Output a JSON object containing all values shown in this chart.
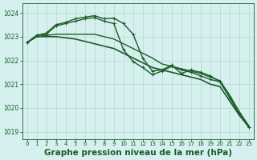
{
  "background_color": "#d6f0f0",
  "grid_color": "#b8ddd0",
  "line_color": "#1a5c28",
  "title": "Graphe pression niveau de la mer (hPa)",
  "ylim": [
    1018.7,
    1024.4
  ],
  "xlim": [
    -0.5,
    23.5
  ],
  "yticks": [
    1019,
    1020,
    1021,
    1022,
    1023,
    1024
  ],
  "xticks": [
    0,
    1,
    2,
    3,
    4,
    5,
    6,
    7,
    8,
    9,
    10,
    11,
    12,
    13,
    14,
    15,
    16,
    17,
    18,
    19,
    20,
    21,
    22,
    23
  ],
  "series": [
    {
      "y": [
        1022.75,
        1023.0,
        1023.0,
        1023.0,
        1022.95,
        1022.9,
        1022.8,
        1022.7,
        1022.6,
        1022.5,
        1022.3,
        1022.1,
        1021.9,
        1021.7,
        1021.6,
        1021.5,
        1021.4,
        1021.3,
        1021.2,
        1021.0,
        1020.9,
        1020.3,
        1019.7,
        1019.2
      ],
      "marker": false,
      "lw": 1.2
    },
    {
      "y": [
        1022.75,
        1023.0,
        1023.05,
        1023.1,
        1023.1,
        1023.1,
        1023.1,
        1023.1,
        1023.0,
        1022.9,
        1022.7,
        1022.5,
        1022.3,
        1022.1,
        1021.85,
        1021.75,
        1021.65,
        1021.55,
        1021.45,
        1021.3,
        1021.15,
        1020.55,
        1019.85,
        1019.25
      ],
      "marker": false,
      "lw": 1.0
    },
    {
      "y": [
        1022.75,
        1023.05,
        1023.1,
        1023.45,
        1023.55,
        1023.65,
        1023.75,
        1023.8,
        1023.65,
        1023.55,
        1022.45,
        1021.95,
        1021.7,
        1021.4,
        1021.55,
        1021.75,
        1021.6,
        1021.5,
        1021.35,
        1021.2,
        1021.1,
        1020.45,
        1019.75,
        1019.2
      ],
      "marker": true,
      "lw": 1.0
    },
    {
      "y": [
        1022.75,
        1023.05,
        1023.15,
        1023.5,
        1023.6,
        1023.75,
        1023.82,
        1023.88,
        1023.75,
        1023.78,
        1023.55,
        1023.1,
        1022.1,
        1021.55,
        1021.6,
        1021.8,
        1021.45,
        1021.6,
        1021.5,
        1021.35,
        1021.1,
        1020.45,
        1019.75,
        1019.2
      ],
      "marker": true,
      "lw": 1.0
    }
  ]
}
